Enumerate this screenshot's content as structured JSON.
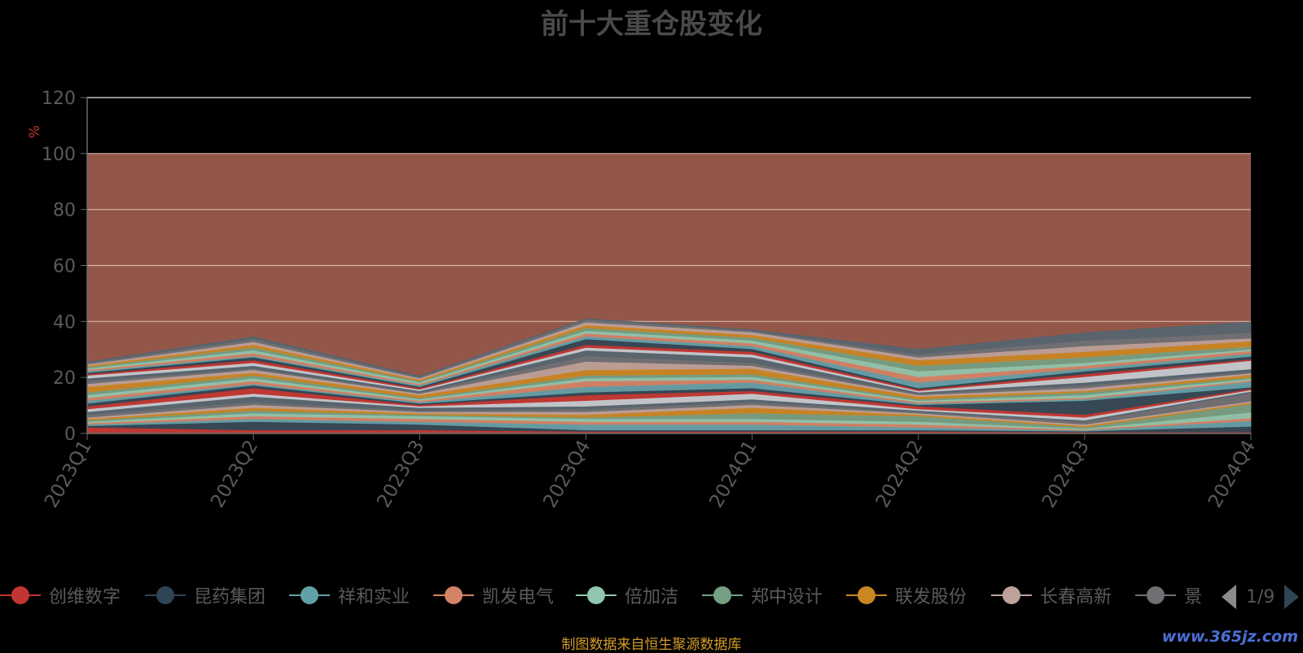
{
  "title": "前十大重仓股变化",
  "source_note": "制图数据来自恒生聚源数据库",
  "watermark": "www.365jz.com",
  "pager": {
    "text": "1/9"
  },
  "legend": [
    {
      "name": "创维数字",
      "color": "#c23531"
    },
    {
      "name": "昆药集团",
      "color": "#2f4554"
    },
    {
      "name": "祥和实业",
      "color": "#61a0a8"
    },
    {
      "name": "凯发电气",
      "color": "#d48265"
    },
    {
      "name": "倍加洁",
      "color": "#91c7ae"
    },
    {
      "name": "郑中设计",
      "color": "#749f83"
    },
    {
      "name": "联发股份",
      "color": "#ca8622"
    },
    {
      "name": "长春高新",
      "color": "#bda29a"
    },
    {
      "name": "景",
      "color": "#6e7074"
    }
  ],
  "chart_data": {
    "type": "area",
    "stacked": true,
    "title": "前十大重仓股变化",
    "ylabel": "%",
    "ylim": [
      0,
      120
    ],
    "yticks": [
      0,
      20,
      40,
      60,
      80,
      100,
      120
    ],
    "categories": [
      "2023Q1",
      "2023Q2",
      "2023Q3",
      "2023Q4",
      "2024Q1",
      "2024Q2",
      "2024Q3",
      "2024Q4"
    ],
    "remainder": {
      "color": "#93574a",
      "description_values": [
        100,
        100,
        100,
        100,
        100,
        100,
        100,
        100
      ]
    },
    "series": [
      {
        "color": "#c23531",
        "values": [
          2,
          1,
          1,
          0.5,
          0.5,
          0.5,
          0.3,
          0.3
        ]
      },
      {
        "color": "#2f4554",
        "values": [
          0.5,
          3,
          2,
          0.5,
          0.5,
          0.5,
          0.3,
          2
        ]
      },
      {
        "color": "#61a0a8",
        "values": [
          0.5,
          1,
          1,
          2,
          2,
          1,
          0.3,
          2
        ]
      },
      {
        "color": "#d48265",
        "values": [
          0.5,
          1,
          1,
          1,
          1,
          1,
          0.3,
          1
        ]
      },
      {
        "color": "#91c7ae",
        "values": [
          0.5,
          1,
          1,
          1,
          1,
          1,
          0.3,
          2
        ]
      },
      {
        "color": "#749f83",
        "values": [
          0.5,
          1,
          0.5,
          0.5,
          2,
          2,
          0.5,
          3
        ]
      },
      {
        "color": "#ca8622",
        "values": [
          0.5,
          1,
          0.5,
          1,
          2,
          0.5,
          0.5,
          0.5
        ]
      },
      {
        "color": "#bda29a",
        "values": [
          0.5,
          1,
          0.5,
          1,
          1,
          0.5,
          0.5,
          0.5
        ]
      },
      {
        "color": "#6e7074",
        "values": [
          1,
          1,
          0.5,
          1,
          1,
          0.5,
          1,
          3
        ]
      },
      {
        "color": "#546570",
        "values": [
          1,
          2,
          1,
          1,
          1,
          0.5,
          0.5,
          0.5
        ]
      },
      {
        "color": "#c4ccd3",
        "values": [
          1,
          1,
          0.5,
          2,
          2,
          0.5,
          1,
          0.5
        ]
      },
      {
        "color": "#c23531",
        "values": [
          1,
          2,
          0.5,
          2,
          1,
          1,
          1,
          0.5
        ]
      },
      {
        "color": "#2f4554",
        "values": [
          1,
          1,
          0.5,
          1,
          1,
          0.5,
          5,
          0.5
        ]
      },
      {
        "color": "#61a0a8",
        "values": [
          1,
          0.5,
          0.5,
          2,
          2,
          0.5,
          0.5,
          2
        ]
      },
      {
        "color": "#d48265",
        "values": [
          1,
          1,
          0.5,
          2,
          1,
          0.5,
          0.5,
          0.5
        ]
      },
      {
        "color": "#91c7ae",
        "values": [
          1,
          1,
          0.5,
          1,
          1,
          0.5,
          1,
          0.5
        ]
      },
      {
        "color": "#749f83",
        "values": [
          1,
          1,
          0.5,
          1,
          1,
          0.5,
          1,
          0.5
        ]
      },
      {
        "color": "#ca8622",
        "values": [
          2,
          1,
          1,
          2,
          2,
          1,
          0.5,
          1
        ]
      },
      {
        "color": "#bda29a",
        "values": [
          1,
          1,
          0.5,
          3,
          1,
          0.5,
          1,
          0.5
        ]
      },
      {
        "color": "#6e7074",
        "values": [
          1,
          0.5,
          0.5,
          2,
          1,
          0.5,
          1,
          0.5
        ]
      },
      {
        "color": "#546570",
        "values": [
          1,
          1,
          0.5,
          2,
          2,
          0.5,
          1,
          1
        ]
      },
      {
        "color": "#c4ccd3",
        "values": [
          1,
          1,
          0.5,
          1,
          1,
          0.5,
          2,
          3
        ]
      },
      {
        "color": "#c23531",
        "values": [
          0.5,
          1,
          0.5,
          1,
          1,
          0.5,
          1,
          0.5
        ]
      },
      {
        "color": "#2f4554",
        "values": [
          0.5,
          1,
          0.5,
          2,
          1,
          0.5,
          1,
          1
        ]
      },
      {
        "color": "#61a0a8",
        "values": [
          0.5,
          0.5,
          0.5,
          1,
          1,
          2,
          1,
          1
        ]
      },
      {
        "color": "#d48265",
        "values": [
          0.5,
          1,
          0.5,
          1,
          1,
          2,
          1,
          1
        ]
      },
      {
        "color": "#91c7ae",
        "values": [
          0.5,
          1,
          0.5,
          1,
          1,
          2,
          1,
          0.5
        ]
      },
      {
        "color": "#749f83",
        "values": [
          0.5,
          1,
          0.5,
          1,
          1,
          2,
          2,
          1
        ]
      },
      {
        "color": "#ca8622",
        "values": [
          0.5,
          1,
          0.5,
          1,
          1,
          2,
          2,
          2
        ]
      },
      {
        "color": "#bda29a",
        "values": [
          0.5,
          1,
          0.5,
          1,
          1,
          1,
          2,
          1
        ]
      },
      {
        "color": "#6e7074",
        "values": [
          0.5,
          1,
          0.5,
          1,
          0.5,
          1,
          2,
          2
        ]
      },
      {
        "color": "#546570",
        "values": [
          0.5,
          1,
          0.5,
          0.5,
          0.5,
          2,
          3,
          4
        ]
      }
    ]
  }
}
